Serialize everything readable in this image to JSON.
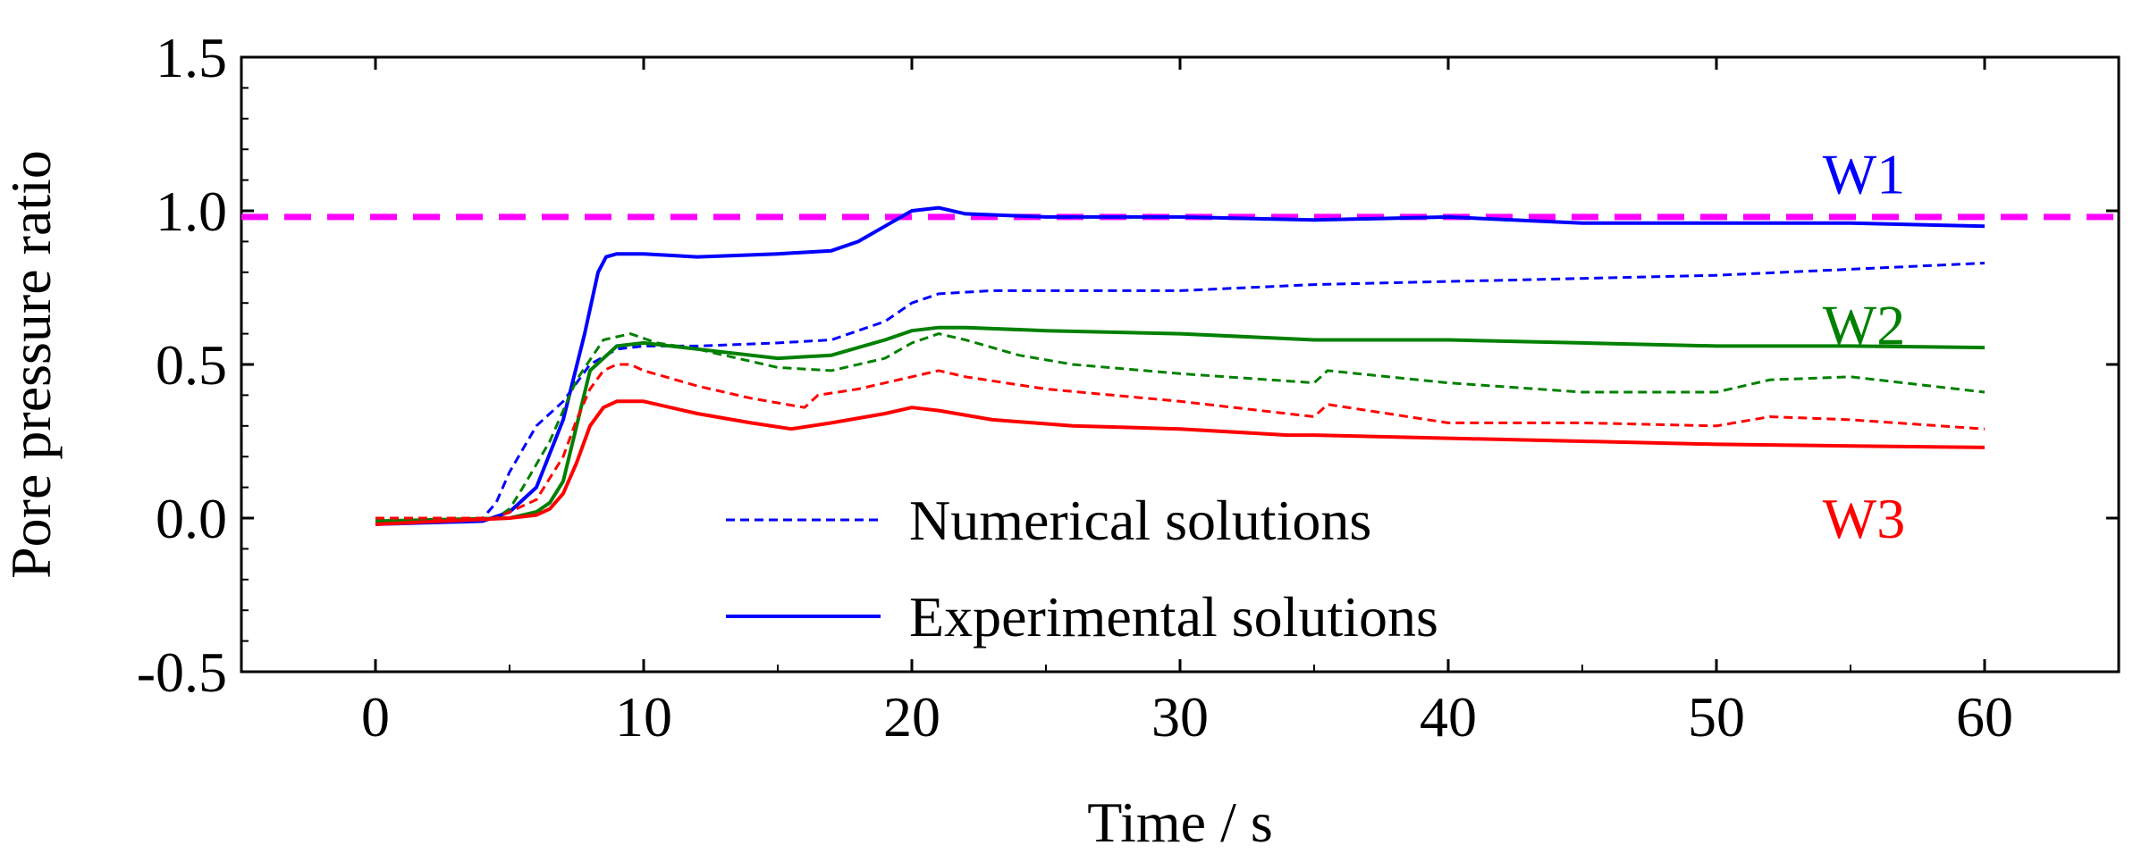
{
  "chart_data": {
    "type": "line",
    "title": "",
    "xlabel": "Time / s",
    "ylabel": "Pore pressure ratio",
    "xlim": [
      -5,
      65
    ],
    "ylim": [
      -0.5,
      1.5
    ],
    "xticks": [
      0,
      10,
      20,
      30,
      40,
      50,
      60
    ],
    "yticks": [
      -0.5,
      0.0,
      0.5,
      1.0,
      1.5
    ],
    "xtick_labels": [
      "0",
      "10",
      "20",
      "30",
      "40",
      "50",
      "60"
    ],
    "ytick_labels": [
      "-0.5",
      "0.0",
      "0.5",
      "1.0",
      "1.5"
    ],
    "reference_line": {
      "y": 0.98,
      "color": "#ff00ff",
      "style": "dashed"
    },
    "legend": {
      "position": "bottom-center",
      "entries": [
        {
          "label": "Numerical solutions",
          "style": "dashed",
          "color": "#0000ff"
        },
        {
          "label": "Experimental solutions",
          "style": "solid",
          "color": "#0000ff"
        }
      ]
    },
    "series_labels": [
      {
        "text": "W1",
        "color": "#0000ff",
        "x": 55.5,
        "y": 1.12
      },
      {
        "text": "W2",
        "color": "#008000",
        "x": 55.5,
        "y": 0.63
      },
      {
        "text": "W3",
        "color": "#ff0000",
        "x": 55.5,
        "y": 0.0
      }
    ],
    "series": [
      {
        "name": "W1 Experimental",
        "gauge": "W1",
        "kind": "experimental",
        "color": "#0000ff",
        "style": "solid",
        "x": [
          0,
          4,
          5,
          6,
          7,
          7.8,
          8.3,
          8.6,
          9,
          10,
          12,
          15,
          17,
          18,
          19,
          20,
          21,
          22,
          25,
          30,
          35,
          40,
          45,
          50,
          55,
          60
        ],
        "y": [
          -0.02,
          -0.01,
          0.02,
          0.1,
          0.32,
          0.6,
          0.8,
          0.85,
          0.86,
          0.86,
          0.85,
          0.86,
          0.87,
          0.9,
          0.95,
          1.0,
          1.01,
          0.99,
          0.98,
          0.98,
          0.97,
          0.98,
          0.96,
          0.96,
          0.96,
          0.95
        ]
      },
      {
        "name": "W1 Numerical",
        "gauge": "W1",
        "kind": "numerical",
        "color": "#0000ff",
        "style": "dashed",
        "x": [
          0,
          4,
          4.5,
          5,
          6,
          7,
          8,
          9,
          10,
          12,
          15,
          17,
          19,
          20,
          21,
          23,
          26,
          30,
          35,
          40,
          45,
          50,
          55,
          60
        ],
        "y": [
          -0.02,
          0.0,
          0.05,
          0.15,
          0.3,
          0.38,
          0.5,
          0.55,
          0.56,
          0.56,
          0.57,
          0.58,
          0.64,
          0.7,
          0.73,
          0.74,
          0.74,
          0.74,
          0.76,
          0.77,
          0.78,
          0.79,
          0.81,
          0.83
        ]
      },
      {
        "name": "W2 Experimental",
        "gauge": "W2",
        "kind": "experimental",
        "color": "#008000",
        "style": "solid",
        "x": [
          0,
          5,
          6,
          6.5,
          7,
          7.5,
          8,
          9,
          10,
          12,
          15,
          17,
          19,
          20,
          21,
          22,
          25,
          30,
          35,
          40,
          45,
          50,
          55,
          60
        ],
        "y": [
          -0.01,
          0.0,
          0.02,
          0.05,
          0.12,
          0.3,
          0.48,
          0.56,
          0.57,
          0.55,
          0.52,
          0.53,
          0.58,
          0.61,
          0.62,
          0.62,
          0.61,
          0.6,
          0.58,
          0.58,
          0.57,
          0.56,
          0.56,
          0.555
        ]
      },
      {
        "name": "W2 Numerical",
        "gauge": "W2",
        "kind": "numerical",
        "color": "#008000",
        "style": "dashed",
        "x": [
          0,
          4.5,
          5,
          5.5,
          6.5,
          7.5,
          8.5,
          9.5,
          10.5,
          12,
          15,
          17,
          19,
          20,
          21,
          22,
          24,
          26,
          30,
          35,
          35.5,
          40,
          45,
          50,
          52,
          55,
          60
        ],
        "y": [
          0.0,
          0.0,
          0.03,
          0.1,
          0.25,
          0.45,
          0.58,
          0.6,
          0.57,
          0.55,
          0.49,
          0.48,
          0.52,
          0.57,
          0.6,
          0.58,
          0.53,
          0.5,
          0.47,
          0.44,
          0.48,
          0.44,
          0.41,
          0.41,
          0.45,
          0.46,
          0.41
        ]
      },
      {
        "name": "W3 Experimental",
        "gauge": "W3",
        "kind": "experimental",
        "color": "#ff0000",
        "style": "solid",
        "x": [
          0,
          5,
          6,
          6.5,
          7,
          7.5,
          8,
          8.5,
          9,
          10,
          12,
          14,
          15.5,
          17,
          19,
          20,
          21,
          23,
          26,
          30,
          34,
          35,
          40,
          45,
          50,
          55,
          60
        ],
        "y": [
          -0.02,
          0.0,
          0.01,
          0.03,
          0.08,
          0.18,
          0.3,
          0.36,
          0.38,
          0.38,
          0.34,
          0.31,
          0.29,
          0.31,
          0.34,
          0.36,
          0.35,
          0.32,
          0.3,
          0.29,
          0.27,
          0.27,
          0.26,
          0.25,
          0.24,
          0.235,
          0.23
        ]
      },
      {
        "name": "W3 Numerical",
        "gauge": "W3",
        "kind": "numerical",
        "color": "#ff0000",
        "style": "dashed",
        "x": [
          0,
          4.5,
          5,
          6,
          7,
          7.5,
          8,
          8.5,
          9,
          9.5,
          10,
          12,
          14,
          16,
          16.5,
          18,
          20,
          21,
          22,
          25,
          30,
          35,
          35.5,
          40,
          45,
          50,
          52,
          55,
          60
        ],
        "y": [
          0.0,
          0.0,
          0.02,
          0.06,
          0.2,
          0.32,
          0.42,
          0.48,
          0.5,
          0.5,
          0.48,
          0.43,
          0.39,
          0.36,
          0.4,
          0.42,
          0.46,
          0.48,
          0.46,
          0.42,
          0.38,
          0.33,
          0.37,
          0.31,
          0.31,
          0.3,
          0.33,
          0.32,
          0.29
        ]
      }
    ]
  }
}
